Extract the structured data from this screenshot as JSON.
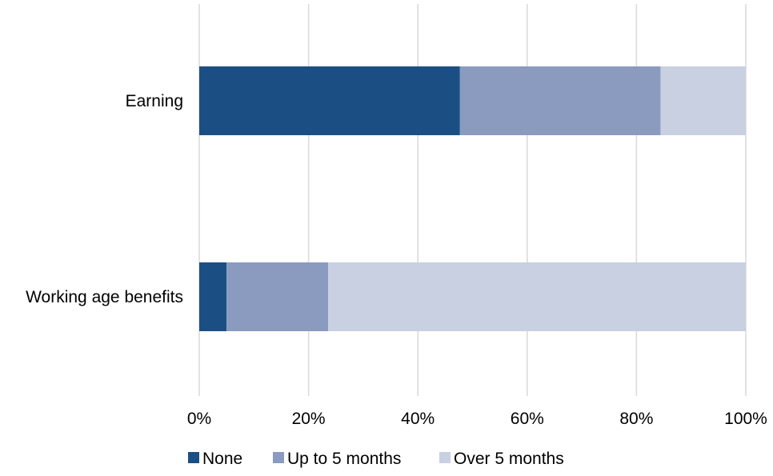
{
  "chart_data": {
    "type": "bar",
    "orientation": "horizontal",
    "stacked": "percent",
    "categories": [
      "Earning",
      "Working age benefits"
    ],
    "series": [
      {
        "name": "None",
        "values": [
          47.7,
          5.0
        ],
        "color": "#1b4f83"
      },
      {
        "name": "Up to 5 months",
        "values": [
          36.7,
          18.6
        ],
        "color": "#8a9bbf"
      },
      {
        "name": "Over 5 months",
        "values": [
          15.6,
          76.4
        ],
        "color": "#c8d0e1"
      }
    ],
    "xlim": [
      0,
      100
    ],
    "x_ticks": [
      "0%",
      "20%",
      "40%",
      "60%",
      "80%",
      "100%"
    ],
    "grid": "vertical",
    "legend_position": "bottom",
    "title": "",
    "xlabel": "",
    "ylabel": ""
  }
}
